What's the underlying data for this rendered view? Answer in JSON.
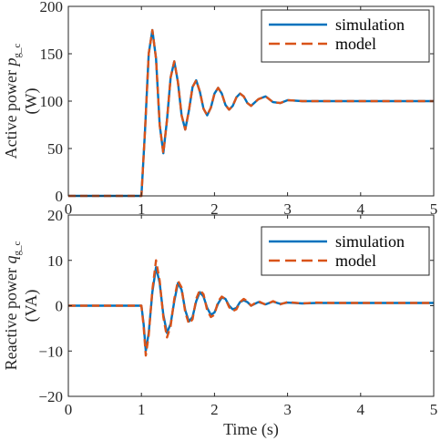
{
  "chart_data": [
    {
      "type": "line",
      "ylabel": "Active power p_g_c (W)",
      "ylabel_line1": "Active power ",
      "ylabel_var": "p",
      "ylabel_sub": "g_c",
      "ylabel_line2": "(W)",
      "xlabel": "",
      "xlim": [
        0,
        5
      ],
      "ylim": [
        0,
        200
      ],
      "xticks": [
        "0",
        "1",
        "2",
        "3",
        "4",
        "5"
      ],
      "yticks": [
        "0",
        "50",
        "100",
        "150",
        "200"
      ],
      "grid": false,
      "legend_position": "top-right",
      "series": [
        {
          "name": "simulation",
          "color": "#0072BD",
          "style": "solid",
          "x": [
            0,
            1.0,
            1.05,
            1.1,
            1.15,
            1.2,
            1.25,
            1.3,
            1.35,
            1.4,
            1.45,
            1.5,
            1.55,
            1.6,
            1.65,
            1.7,
            1.75,
            1.8,
            1.85,
            1.9,
            1.95,
            2.0,
            2.05,
            2.1,
            2.15,
            2.2,
            2.25,
            2.3,
            2.35,
            2.4,
            2.45,
            2.5,
            2.6,
            2.7,
            2.8,
            2.9,
            3.0,
            3.2,
            3.4,
            3.6,
            3.8,
            4.0,
            4.5,
            5.0
          ],
          "y": [
            0,
            0,
            70,
            150,
            175,
            145,
            75,
            45,
            80,
            125,
            142,
            120,
            85,
            70,
            90,
            115,
            122,
            110,
            92,
            85,
            93,
            108,
            114,
            108,
            96,
            91,
            95,
            104,
            108,
            105,
            98,
            95,
            102,
            105,
            99,
            98,
            101,
            100,
            100,
            100,
            100,
            100,
            100,
            100
          ]
        },
        {
          "name": "model",
          "color": "#D95319",
          "style": "dashed",
          "x": [
            0,
            1.0,
            1.05,
            1.1,
            1.15,
            1.2,
            1.25,
            1.3,
            1.35,
            1.4,
            1.45,
            1.5,
            1.55,
            1.6,
            1.65,
            1.7,
            1.75,
            1.8,
            1.85,
            1.9,
            1.95,
            2.0,
            2.05,
            2.1,
            2.15,
            2.2,
            2.25,
            2.3,
            2.35,
            2.4,
            2.45,
            2.5,
            2.6,
            2.7,
            2.8,
            2.9,
            3.0,
            3.2,
            3.4,
            3.6,
            3.8,
            4.0,
            4.5,
            5.0
          ],
          "y": [
            0,
            0,
            70,
            150,
            175,
            145,
            75,
            45,
            80,
            125,
            142,
            120,
            85,
            70,
            90,
            115,
            122,
            110,
            92,
            85,
            93,
            108,
            114,
            108,
            96,
            91,
            95,
            104,
            108,
            105,
            98,
            95,
            102,
            105,
            99,
            98,
            101,
            100,
            100,
            100,
            100,
            100,
            100,
            100
          ]
        }
      ]
    },
    {
      "type": "line",
      "ylabel": "Reactive power q_g_c (VA)",
      "ylabel_line1": "Reactive power ",
      "ylabel_var": "q",
      "ylabel_sub": "g_c",
      "ylabel_line2": "(VA)",
      "xlabel": "Time (s)",
      "xlim": [
        0,
        5
      ],
      "ylim": [
        -20,
        20
      ],
      "xticks": [
        "0",
        "1",
        "2",
        "3",
        "4",
        "5"
      ],
      "yticks": [
        "−20",
        "−10",
        "0",
        "10",
        "20"
      ],
      "grid": false,
      "legend_position": "top-right",
      "series": [
        {
          "name": "simulation",
          "color": "#0072BD",
          "style": "solid",
          "x": [
            0,
            1.0,
            1.03,
            1.06,
            1.1,
            1.15,
            1.2,
            1.25,
            1.3,
            1.35,
            1.4,
            1.45,
            1.5,
            1.55,
            1.6,
            1.65,
            1.7,
            1.75,
            1.8,
            1.85,
            1.9,
            1.95,
            2.0,
            2.05,
            2.1,
            2.15,
            2.2,
            2.25,
            2.3,
            2.35,
            2.4,
            2.45,
            2.5,
            2.6,
            2.7,
            2.8,
            2.9,
            3.0,
            3.2,
            3.4,
            3.6,
            3.8,
            4.0,
            4.5,
            5.0
          ],
          "y": [
            0,
            0,
            -4,
            -10,
            -6,
            3,
            8.5,
            5,
            -2,
            -6,
            -4,
            1,
            5,
            3.5,
            -1,
            -3.5,
            -2.5,
            1,
            3,
            2,
            -0.5,
            -2,
            -1.5,
            0.5,
            1.8,
            1.5,
            0,
            -0.8,
            -0.5,
            0.8,
            1.2,
            0.8,
            0,
            0.8,
            0.3,
            0.9,
            0.4,
            0.7,
            0.5,
            0.6,
            0.6,
            0.6,
            0.6,
            0.6,
            0.6
          ]
        },
        {
          "name": "model",
          "color": "#D95319",
          "style": "dashed",
          "x": [
            0,
            1.0,
            1.03,
            1.06,
            1.1,
            1.15,
            1.2,
            1.25,
            1.3,
            1.35,
            1.4,
            1.45,
            1.5,
            1.55,
            1.6,
            1.65,
            1.7,
            1.75,
            1.8,
            1.85,
            1.9,
            1.95,
            2.0,
            2.05,
            2.1,
            2.15,
            2.2,
            2.25,
            2.3,
            2.35,
            2.4,
            2.45,
            2.5,
            2.6,
            2.7,
            2.8,
            2.9,
            3.0,
            3.2,
            3.4,
            3.6,
            3.8,
            4.0,
            4.5,
            5.0
          ],
          "y": [
            0,
            0,
            -4.5,
            -11,
            -6.5,
            3.5,
            10,
            5.5,
            -2.5,
            -7,
            -4.5,
            1.5,
            5.5,
            4,
            -1.5,
            -4,
            -3,
            1.5,
            3.5,
            2.5,
            -1,
            -2.5,
            -2,
            1,
            2,
            1.5,
            -0.3,
            -1.2,
            -0.8,
            0.8,
            1.5,
            1,
            0,
            1,
            0.2,
            1,
            0.3,
            0.8,
            0.5,
            0.7,
            0.6,
            0.6,
            0.6,
            0.6,
            0.6
          ]
        }
      ]
    }
  ]
}
